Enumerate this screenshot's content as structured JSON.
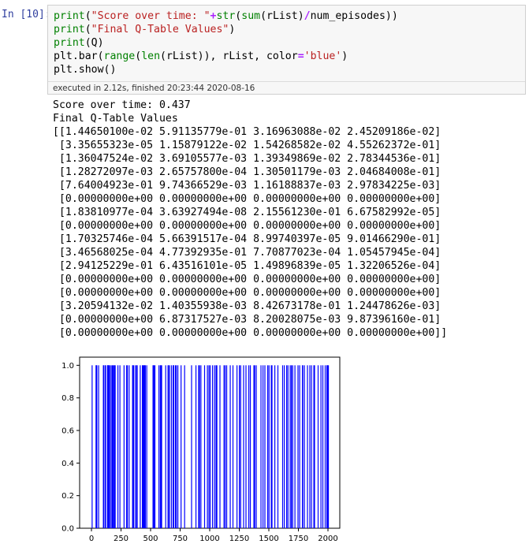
{
  "cell": {
    "prompt": "In [10]:",
    "code": [
      [
        {
          "t": "print",
          "c": "fn"
        },
        {
          "t": "(",
          "c": ""
        },
        {
          "t": "\"Score over time: \"",
          "c": "str"
        },
        {
          "t": "+",
          "c": "op"
        },
        {
          "t": "str",
          "c": "fn"
        },
        {
          "t": "(",
          "c": ""
        },
        {
          "t": "sum",
          "c": "fn"
        },
        {
          "t": "(rList)",
          "c": ""
        },
        {
          "t": "/",
          "c": "op"
        },
        {
          "t": "num_episodes))",
          "c": ""
        }
      ],
      [
        {
          "t": "print",
          "c": "fn"
        },
        {
          "t": "(",
          "c": ""
        },
        {
          "t": "\"Final Q-Table Values\"",
          "c": "str"
        },
        {
          "t": ")",
          "c": ""
        }
      ],
      [
        {
          "t": "print",
          "c": "fn"
        },
        {
          "t": "(Q)",
          "c": ""
        }
      ],
      [
        {
          "t": "plt.bar(",
          "c": ""
        },
        {
          "t": "range",
          "c": "fn"
        },
        {
          "t": "(",
          "c": ""
        },
        {
          "t": "len",
          "c": "fn"
        },
        {
          "t": "(rList)), rList, color",
          "c": ""
        },
        {
          "t": "=",
          "c": "op"
        },
        {
          "t": "'blue'",
          "c": "str"
        },
        {
          "t": ")",
          "c": ""
        }
      ],
      [
        {
          "t": "plt.show()",
          "c": ""
        }
      ]
    ],
    "exec_info": "executed in 2.12s, finished 20:23:44 2020-08-16"
  },
  "output": {
    "lines": [
      "Score over time: 0.437",
      "Final Q-Table Values",
      "[[1.44650100e-02 5.91135779e-01 3.16963088e-02 2.45209186e-02]",
      " [3.35655323e-05 1.15879122e-02 1.54268582e-02 4.55262372e-01]",
      " [1.36047524e-02 3.69105577e-03 1.39349869e-02 2.78344536e-01]",
      " [1.28272097e-03 2.65757800e-04 1.30501179e-03 2.04684008e-01]",
      " [7.64004923e-01 9.74366529e-03 1.16188837e-03 2.97834225e-03]",
      " [0.00000000e+00 0.00000000e+00 0.00000000e+00 0.00000000e+00]",
      " [1.83810977e-04 3.63927494e-08 2.15561230e-01 6.67582992e-05]",
      " [0.00000000e+00 0.00000000e+00 0.00000000e+00 0.00000000e+00]",
      " [1.70325746e-04 5.66391517e-04 8.99740397e-05 9.01466290e-01]",
      " [3.46568025e-04 4.77392935e-01 7.70877023e-04 1.05457945e-04]",
      " [2.94125229e-01 6.43516101e-05 1.49896839e-05 1.32206526e-04]",
      " [0.00000000e+00 0.00000000e+00 0.00000000e+00 0.00000000e+00]",
      " [0.00000000e+00 0.00000000e+00 0.00000000e+00 0.00000000e+00]",
      " [3.20594132e-02 1.40355938e-03 8.42673178e-01 1.24478626e-03]",
      " [0.00000000e+00 6.87317527e-03 8.20028075e-03 9.87396160e-01]",
      " [0.00000000e+00 0.00000000e+00 0.00000000e+00 0.00000000e+00]]"
    ]
  },
  "chart_data": {
    "type": "bar",
    "color": "#0000ff",
    "title": "",
    "xlabel": "",
    "ylabel": "",
    "xlim": [
      -100,
      2100
    ],
    "ylim": [
      0,
      1.05
    ],
    "xticks": [
      0,
      250,
      500,
      750,
      1000,
      1250,
      1500,
      1750,
      2000
    ],
    "yticks": [
      "0.0",
      "0.2",
      "0.4",
      "0.6",
      "0.8",
      "1.0"
    ],
    "ytick_values": [
      0,
      0.2,
      0.4,
      0.6,
      0.8,
      1.0
    ],
    "grid": false,
    "bar_height": 1.0,
    "episodes_with_reward_1": [
      5,
      38,
      40,
      45,
      60,
      100,
      103,
      115,
      119,
      135,
      137,
      140,
      145,
      150,
      160,
      172,
      180,
      187,
      195,
      200,
      223,
      240,
      275,
      297,
      303,
      318,
      347,
      350,
      357,
      372,
      382,
      386,
      412,
      430,
      433,
      440,
      445,
      450,
      455,
      467,
      520,
      523,
      531,
      536,
      570,
      582,
      587,
      593,
      627,
      647,
      650,
      660,
      676,
      690,
      696,
      710,
      717,
      730,
      757,
      787,
      846,
      883,
      906,
      913,
      925,
      956,
      980,
      993,
      1003,
      1023,
      1040,
      1053,
      1060,
      1086,
      1120,
      1130,
      1143,
      1173,
      1196,
      1230,
      1250,
      1261,
      1286,
      1306,
      1330,
      1343,
      1373,
      1380,
      1393,
      1433,
      1450,
      1466,
      1490,
      1501,
      1520,
      1526,
      1550,
      1576,
      1616,
      1630,
      1650,
      1661,
      1680,
      1690,
      1701,
      1720,
      1746,
      1760,
      1783,
      1786,
      1800,
      1826,
      1846,
      1860,
      1880,
      1886,
      1916,
      1940,
      1956,
      1976,
      1990,
      1996,
      2003
    ]
  }
}
